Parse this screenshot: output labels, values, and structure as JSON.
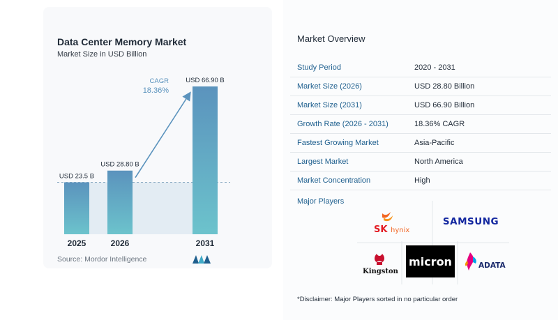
{
  "chart_data": {
    "type": "bar",
    "title": "Data Center Memory Market",
    "subtitle": "Market Size in USD Billion",
    "categories": [
      "2025",
      "2026",
      "2031"
    ],
    "values": [
      23.5,
      28.8,
      66.9
    ],
    "data_labels": [
      "USD 23.5 B",
      "USD 28.80 B",
      "USD 66.90 B"
    ],
    "cagr_label": "CAGR",
    "cagr_value": "18.36%",
    "colors": {
      "bar_top": "#5b93bd",
      "bar_bottom": "#6cc3cc",
      "arrow": "#5b93bd",
      "cagr_text": "#5b93bd",
      "baseline_dash": "#8aa9c2",
      "shade": "#e3ecf3"
    }
  },
  "source": "Source:  Mordor Intelligence",
  "source_logo_icon": "mordor-logo-icon",
  "overview": {
    "title": "Market Overview",
    "rows": [
      {
        "label": "Study Period",
        "value": "2020 - 2031"
      },
      {
        "label": "Market Size (2026)",
        "value": "USD 28.80 Billion"
      },
      {
        "label": "Market Size (2031)",
        "value": "USD 66.90 Billion"
      },
      {
        "label": "Growth Rate (2026 - 2031)",
        "value": "18.36% CAGR"
      },
      {
        "label": "Fastest Growing Market",
        "value": "Asia-Pacific"
      },
      {
        "label": "Largest Market",
        "value": "North America"
      },
      {
        "label": "Market Concentration",
        "value": "High"
      }
    ]
  },
  "players": {
    "title": "Major Players",
    "logos": {
      "sk_hynix_sk": "SK",
      "sk_hynix_name": "hynix",
      "samsung": "SAMSUNG",
      "kingston": "Kingston",
      "micron": "micron",
      "adata": "ADATA"
    }
  },
  "disclaimer": "*Disclaimer: Major Players sorted in no particular order"
}
